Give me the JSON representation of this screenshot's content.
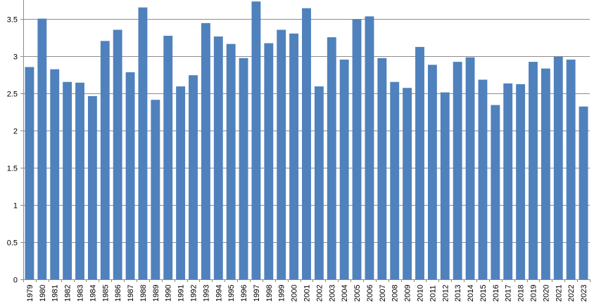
{
  "chart_data": {
    "type": "bar",
    "title": "",
    "xlabel": "",
    "ylabel": "",
    "ylim": [
      0,
      3.75
    ],
    "yticks": [
      0,
      0.5,
      1,
      1.5,
      2,
      2.5,
      3,
      3.5
    ],
    "y_tick_labels": [
      "0",
      "0.5",
      "1",
      "1.5",
      "2",
      "2.5",
      "3",
      "3.5"
    ],
    "grid": "horizontal",
    "legend": "none",
    "bar_color": "#4f81bd",
    "categories": [
      "1979",
      "1980",
      "1981",
      "1982",
      "1983",
      "1984",
      "1985",
      "1986",
      "1987",
      "1988",
      "1989",
      "1990",
      "1991",
      "1992",
      "1993",
      "1994",
      "1995",
      "1996",
      "1997",
      "1998",
      "1999",
      "2000",
      "2001",
      "2002",
      "2003",
      "2004",
      "2005",
      "2006",
      "2007",
      "2008",
      "2009",
      "2010",
      "2011",
      "2012",
      "2013",
      "2014",
      "2015",
      "2016",
      "2017",
      "2018",
      "2019",
      "2020",
      "2021",
      "2022",
      "2023"
    ],
    "values": [
      2.85,
      3.5,
      2.82,
      2.65,
      2.64,
      2.46,
      3.2,
      3.35,
      2.78,
      3.65,
      2.41,
      3.27,
      2.59,
      2.74,
      3.44,
      3.26,
      3.16,
      2.97,
      3.73,
      3.17,
      3.35,
      3.3,
      3.64,
      2.59,
      3.25,
      2.95,
      3.49,
      3.53,
      2.97,
      2.65,
      2.57,
      3.12,
      2.88,
      2.51,
      2.92,
      2.98,
      2.68,
      2.34,
      2.63,
      2.62,
      2.92,
      2.83,
      2.99,
      2.95,
      2.32
    ]
  }
}
